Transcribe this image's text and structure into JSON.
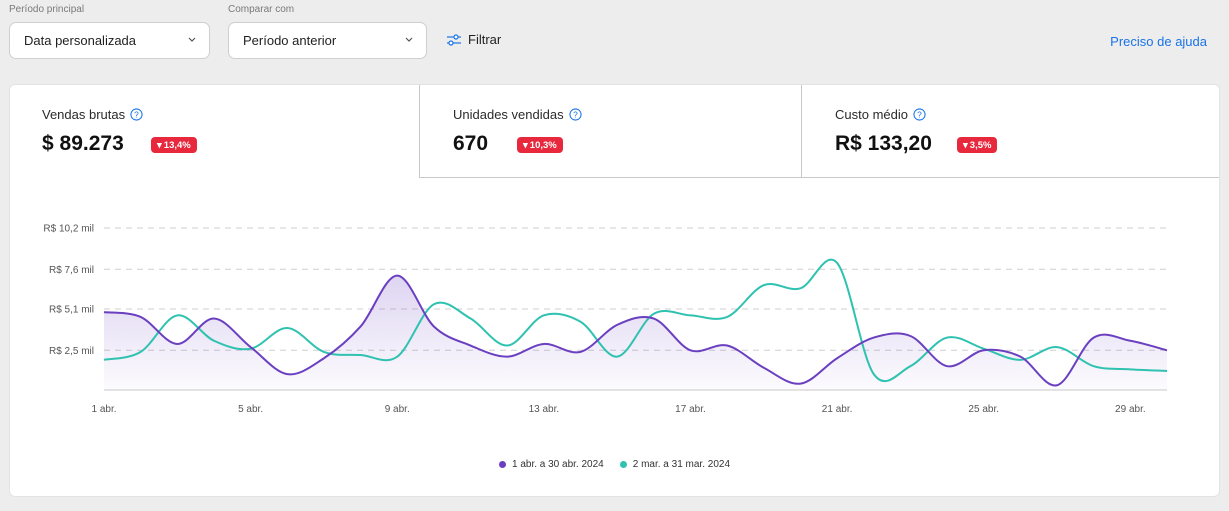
{
  "filters": {
    "primary_label": "Período principal",
    "primary_value": "Data personalizada",
    "compare_label": "Comparar com",
    "compare_value": "Período anterior",
    "filter_label": "Filtrar",
    "help_label": "Preciso de ajuda"
  },
  "kpis": [
    {
      "label": "Vendas brutas",
      "value": "$ 89.273",
      "delta": "13,4%"
    },
    {
      "label": "Unidades vendidas",
      "value": "670",
      "delta": "10,3%"
    },
    {
      "label": "Custo médio",
      "value": "R$ 133,20",
      "delta": "3,5%"
    }
  ],
  "colors": {
    "primary": "#6a3fc0",
    "compare": "#2fc2b0",
    "badge": "#e8283c",
    "link": "#1a73e8"
  },
  "chart_data": {
    "type": "line",
    "ylim": [
      0,
      10.2
    ],
    "y_ticks": [
      {
        "value": 2.5,
        "label": "R$ 2,5 mil"
      },
      {
        "value": 5.1,
        "label": "R$ 5,1 mil"
      },
      {
        "value": 7.6,
        "label": "R$ 7,6 mil"
      },
      {
        "value": 10.2,
        "label": "R$ 10,2 mil"
      }
    ],
    "x_ticks": [
      {
        "index": 0,
        "label": "1 abr."
      },
      {
        "index": 4,
        "label": "5 abr."
      },
      {
        "index": 8,
        "label": "9 abr."
      },
      {
        "index": 12,
        "label": "13 abr."
      },
      {
        "index": 16,
        "label": "17 abr."
      },
      {
        "index": 20,
        "label": "21 abr."
      },
      {
        "index": 24,
        "label": "25 abr."
      },
      {
        "index": 28,
        "label": "29 abr."
      }
    ],
    "series": [
      {
        "name": "1 abr. a 30 abr. 2024",
        "values": [
          4.9,
          4.6,
          2.9,
          4.5,
          2.7,
          1.0,
          2.0,
          4.0,
          7.2,
          4.0,
          2.8,
          2.1,
          2.9,
          2.4,
          4.1,
          4.5,
          2.5,
          2.8,
          1.4,
          0.4,
          2.0,
          3.3,
          3.4,
          1.5,
          2.5,
          2.1,
          0.3,
          3.3,
          3.1,
          2.5
        ]
      },
      {
        "name": "2 mar. a 31 mar. 2024",
        "values": [
          1.9,
          2.4,
          4.7,
          3.1,
          2.6,
          3.9,
          2.4,
          2.2,
          2.1,
          5.4,
          4.5,
          2.8,
          4.7,
          4.3,
          2.1,
          4.8,
          4.7,
          4.6,
          6.6,
          6.4,
          8.0,
          1.0,
          1.5,
          3.3,
          2.6,
          1.9,
          2.7,
          1.5,
          1.3,
          1.2
        ]
      }
    ]
  }
}
